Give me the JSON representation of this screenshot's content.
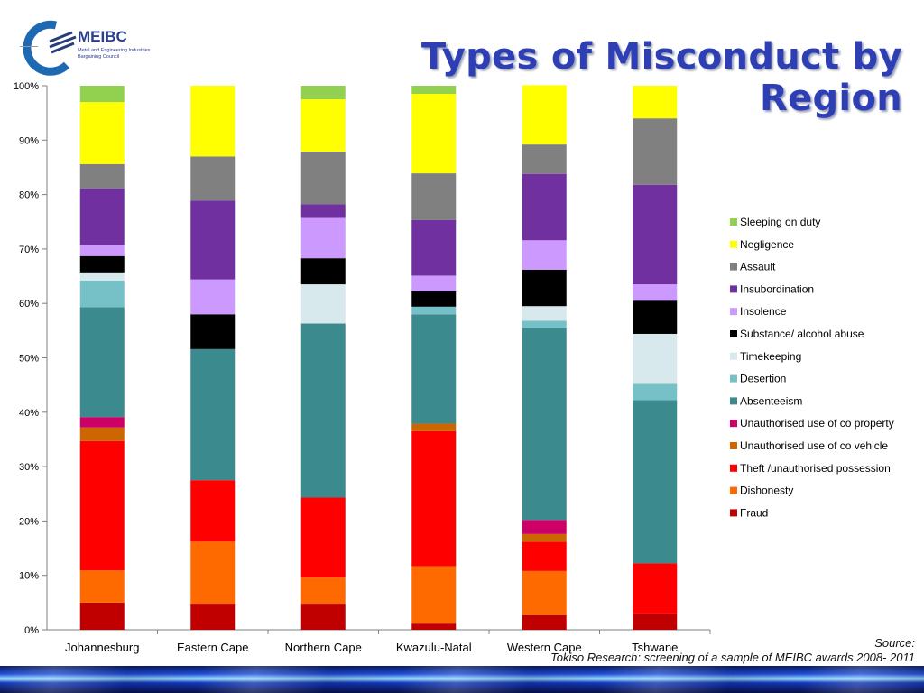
{
  "slide": {
    "title": "Types of Misconduct by Region",
    "logo": {
      "name": "MEIBC",
      "subtitle_lines": [
        "Metal and Engineering Industries",
        "Bargaining Council"
      ]
    },
    "source_label": "Source:",
    "source_text": "Tokiso Research: screening of a sample of MEIBC awards 2008- 2011"
  },
  "chart_data": {
    "type": "bar",
    "stacked": true,
    "title": "",
    "xlabel": "",
    "ylabel": "",
    "ylim": [
      0,
      100
    ],
    "y_ticks": [
      "0%",
      "10%",
      "20%",
      "30%",
      "40%",
      "50%",
      "60%",
      "70%",
      "80%",
      "90%",
      "100%"
    ],
    "grid": false,
    "legend_position": "right",
    "categories": [
      "Johannesburg",
      "Eastern Cape",
      "Northern Cape",
      "Kwazulu-Natal",
      "Western Cape",
      "Tshwane"
    ],
    "series": [
      {
        "name": "Fraud",
        "color": "#c00000",
        "values": [
          5.0,
          4.8,
          4.8,
          1.3,
          2.7,
          3.0
        ]
      },
      {
        "name": "Dishonesty",
        "color": "#ff6a00",
        "values": [
          5.9,
          11.4,
          4.8,
          10.4,
          8.1,
          0.0
        ]
      },
      {
        "name": "Theft /unauthorised possession",
        "color": "#ff0000",
        "values": [
          23.8,
          11.3,
          14.7,
          24.8,
          5.4,
          9.2
        ]
      },
      {
        "name": "Unauthorised use of co vehicle",
        "color": "#cc6600",
        "values": [
          2.5,
          0.0,
          0.0,
          1.4,
          1.4,
          0.0
        ]
      },
      {
        "name": "Unauthorised use of co property",
        "color": "#cc0066",
        "values": [
          1.9,
          0.0,
          0.0,
          0.0,
          2.6,
          0.0
        ]
      },
      {
        "name": "Absenteeism",
        "color": "#3a8a8e",
        "values": [
          20.2,
          24.1,
          32.0,
          20.1,
          35.2,
          30.0
        ]
      },
      {
        "name": "Desertion",
        "color": "#76c1c7",
        "values": [
          4.9,
          0.0,
          0.0,
          1.4,
          1.4,
          3.0
        ]
      },
      {
        "name": "Timekeeping",
        "color": "#d8e9ee",
        "values": [
          1.5,
          0.0,
          7.2,
          0.0,
          2.7,
          9.2
        ]
      },
      {
        "name": "Substance/ alcohol abuse",
        "color": "#000000",
        "values": [
          3.0,
          6.4,
          4.8,
          2.8,
          6.7,
          6.1
        ]
      },
      {
        "name": "Insolence",
        "color": "#cc99ff",
        "values": [
          2.0,
          6.4,
          7.4,
          2.9,
          5.4,
          3.0
        ]
      },
      {
        "name": "Insubordination",
        "color": "#7030a0",
        "values": [
          10.4,
          14.5,
          2.5,
          10.2,
          12.2,
          18.3
        ]
      },
      {
        "name": "Assault",
        "color": "#808080",
        "values": [
          4.5,
          8.1,
          9.7,
          8.6,
          5.4,
          12.2
        ]
      },
      {
        "name": "Negligence",
        "color": "#ffff00",
        "values": [
          11.4,
          13.0,
          9.6,
          14.6,
          10.9,
          6.0
        ]
      },
      {
        "name": "Sleeping on duty",
        "color": "#92d050",
        "values": [
          3.0,
          0.0,
          2.5,
          1.5,
          0.0,
          0.0
        ]
      }
    ]
  }
}
